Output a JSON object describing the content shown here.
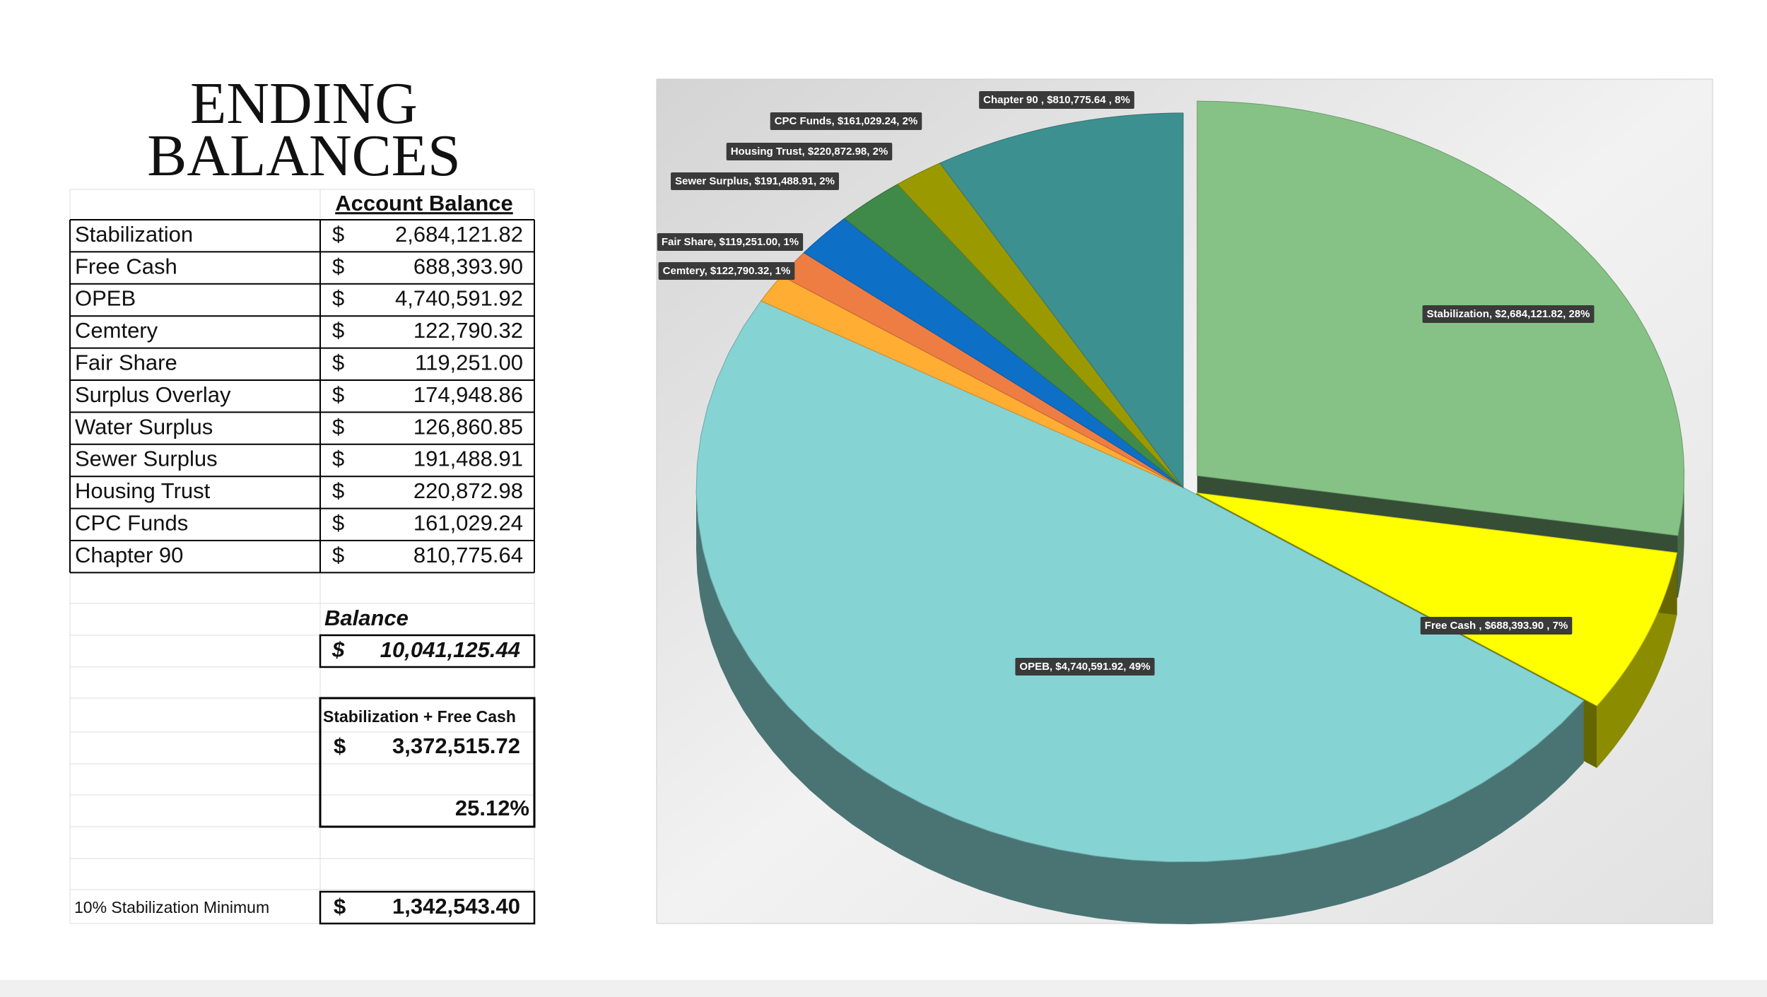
{
  "title": "ENDING BALANCES",
  "table": {
    "header": "Account Balance",
    "rows": [
      [
        "Stabilization",
        "$",
        "2,684,121.82"
      ],
      [
        "Free Cash",
        "$",
        "688,393.90"
      ],
      [
        "OPEB",
        "$",
        "4,740,591.92"
      ],
      [
        "Cemtery",
        "$",
        "122,790.32"
      ],
      [
        "Fair Share",
        "$",
        "119,251.00"
      ],
      [
        "Surplus Overlay",
        "$",
        "174,948.86"
      ],
      [
        "Water Surplus",
        "$",
        "126,860.85"
      ],
      [
        "Sewer Surplus",
        "$",
        "191,488.91"
      ],
      [
        "Housing Trust",
        "$",
        "220,872.98"
      ],
      [
        "CPC Funds",
        "$",
        "161,029.24"
      ],
      [
        "Chapter 90",
        "$",
        "810,775.64"
      ]
    ],
    "balance": {
      "label": "Balance",
      "currency": "$",
      "amount": "10,041,125.44"
    },
    "stab_free": {
      "label": "Stabilization + Free Cash",
      "currency": "$",
      "amount": "3,372,515.72",
      "percent": "25.12%"
    },
    "minimum": {
      "label": "10% Stabilization Minimum",
      "currency": "$",
      "amount": "1,342,543.40"
    }
  },
  "chart_data": {
    "type": "pie",
    "categories": [
      "Stabilization",
      "Free Cash",
      "OPEB",
      "Cemtery",
      "Fair Share",
      "Sewer Surplus",
      "Housing Trust",
      "CPC Funds",
      "Chapter 90"
    ],
    "values": [
      2684121.82,
      688393.9,
      4740591.92,
      122790.32,
      119251.0,
      191488.91,
      220872.98,
      161029.24,
      810775.64
    ],
    "value_labels": [
      "Stabilization, $2,684,121.82, 28%",
      "Free Cash , $688,393.90 , 7%",
      "OPEB, $4,740,591.92, 49%",
      "Cemtery, $122,790.32, 1%",
      "Fair Share, $119,251.00, 1%",
      "Sewer Surplus, $191,488.91, 2%",
      "Housing Trust, $220,872.98, 2%",
      "CPC Funds, $161,029.24, 2%",
      "Chapter 90 , $810,775.64 , 8%"
    ],
    "colors": [
      "#86c286",
      "#ffff00",
      "#86d3d3",
      "#ffad33",
      "#ee7d44",
      "#0e6fc7",
      "#3f8a49",
      "#9a9a00",
      "#3d9090"
    ]
  }
}
